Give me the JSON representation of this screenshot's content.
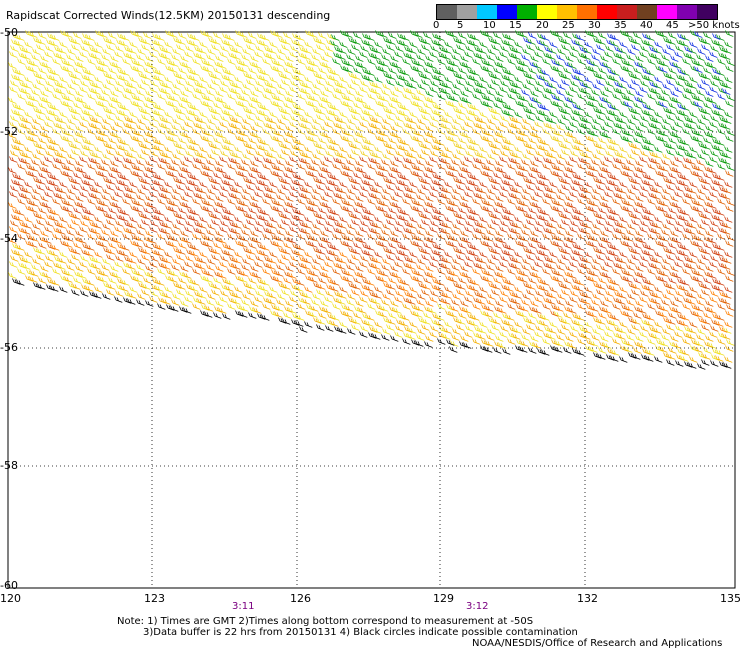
{
  "title": "Rapidscat Corrected Winds(12.5KM) 20150131 descending",
  "legend": {
    "labels": [
      "0",
      "5",
      "10",
      "15",
      "20",
      "25",
      "30",
      "35",
      "40",
      "45",
      ">50 knots"
    ],
    "colors": [
      "#606060",
      "#a0a0a0",
      "#00c8ff",
      "#0000ff",
      "#00b000",
      "#ffff00",
      "#ffc000",
      "#ff7000",
      "#ff0000",
      "#c81e1e",
      "#704020",
      "#ff00ff",
      "#8000b0",
      "#400060"
    ]
  },
  "axes": {
    "lon_labels": [
      "120",
      "123",
      "126",
      "129",
      "132",
      "135"
    ],
    "lat_labels": [
      "-50",
      "-52",
      "-54",
      "-56",
      "-58",
      "-60"
    ]
  },
  "times": [
    "3:11",
    "3:12"
  ],
  "notes": [
    "Note: 1) Times are GMT 2)Times along bottom correspond to measurement at -50S",
    "3)Data buffer is 22 hrs from 20150131 4) Black circles indicate possible contamination"
  ],
  "credit": "NOAA/NESDIS/Office of Research and Applications"
}
